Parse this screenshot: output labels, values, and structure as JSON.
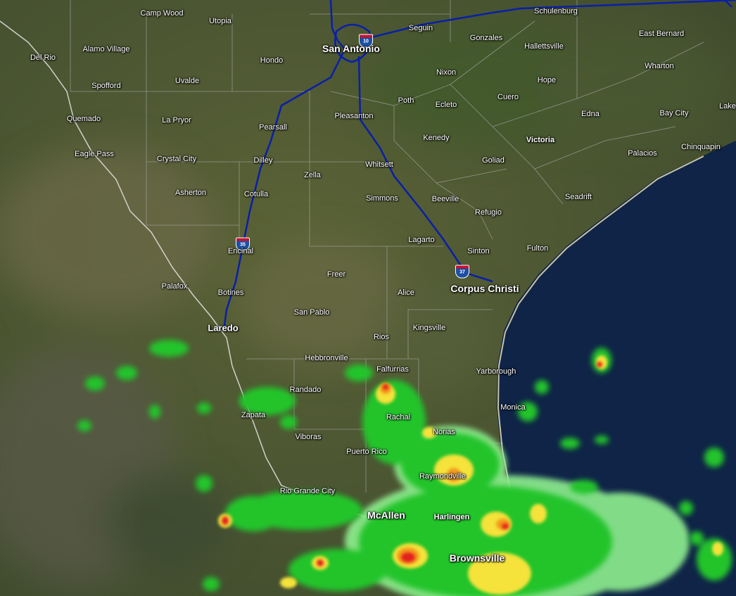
{
  "map": {
    "base_layer": "satellite",
    "overlay": "weather-radar",
    "colors": {
      "ocean": "#0f2447",
      "land": "#4f5a36",
      "highway": "#0a1fa8",
      "county_line": "#a8a8a8",
      "river": "#e6e6e6",
      "radar_light": "#8ff08f",
      "radar_green": "#22c42a",
      "radar_yellow": "#f5e23a",
      "radar_orange": "#f49a1e",
      "radar_red": "#e2231a"
    },
    "shields": [
      "10",
      "35",
      "37"
    ],
    "labels": [
      "Camp Wood",
      "Utopia",
      "Schulenburg",
      "Seguin",
      "Gonzales",
      "East Bernard",
      "Del Rio",
      "Alamo Village",
      "Hondo",
      "San Antonio",
      "Hallettsville",
      "Wharton",
      "Spofford",
      "Uvalde",
      "Nixon",
      "Hope",
      "Lake",
      "Quemado",
      "La Pryor",
      "Pearsall",
      "Pleasanton",
      "Poth",
      "Ecleto",
      "Cuero",
      "Edna",
      "Bay City",
      "Eagle Pass",
      "Crystal City",
      "Dilley",
      "Zella",
      "Whitsett",
      "Kenedy",
      "Victoria",
      "Goliad",
      "Palacios",
      "Chinquapin",
      "Asherton",
      "Cotulla",
      "Simmons",
      "Beeville",
      "Refugio",
      "Seadrift",
      "Encinal",
      "Lagarto",
      "Sinton",
      "Fulton",
      "Palafox",
      "Freer",
      "Corpus Christi",
      "Botines",
      "Alice",
      "San Pablo",
      "Laredo",
      "Kingsville",
      "Rios",
      "Hebbronville",
      "Falfurrias",
      "Yarborough",
      "Randado",
      "Monica",
      "Zapata",
      "Rachal",
      "Norias",
      "Viboras",
      "Puerto Rico",
      "Raymondville",
      "Rio Grande City",
      "McAllen",
      "Harlingen",
      "Brownsville"
    ]
  }
}
